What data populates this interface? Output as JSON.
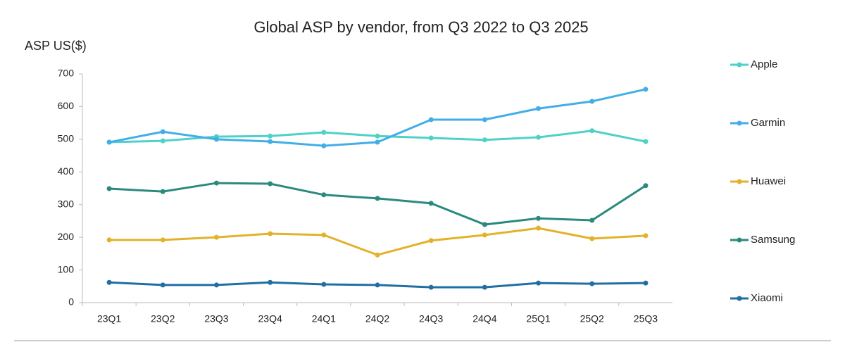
{
  "chart_data": {
    "type": "line",
    "title": "Global ASP by vendor, from Q3 2022 to Q3 2025",
    "y_label": "ASP US($)",
    "categories": [
      "23Q1",
      "23Q2",
      "23Q3",
      "23Q4",
      "24Q1",
      "24Q2",
      "24Q3",
      "24Q4",
      "25Q1",
      "25Q2",
      "25Q3"
    ],
    "series": [
      {
        "name": "Apple",
        "color": "#4fd1c8",
        "values": [
          491,
          495,
          508,
          510,
          521,
          510,
          504,
          498,
          506,
          526,
          493
        ]
      },
      {
        "name": "Garmin",
        "color": "#42aee8",
        "values": [
          491,
          523,
          500,
          493,
          480,
          491,
          560,
          560,
          594,
          616,
          653
        ]
      },
      {
        "name": "Huawei",
        "color": "#e3b22a",
        "values": [
          192,
          192,
          200,
          211,
          207,
          146,
          190,
          207,
          228,
          196,
          205
        ]
      },
      {
        "name": "Samsung",
        "color": "#2a8a7e",
        "values": [
          349,
          340,
          366,
          364,
          330,
          319,
          304,
          239,
          258,
          252,
          358
        ]
      },
      {
        "name": "Xiaomi",
        "color": "#1f6fa3",
        "values": [
          62,
          54,
          54,
          62,
          56,
          54,
          47,
          47,
          60,
          58,
          60
        ]
      }
    ],
    "ylim": [
      0,
      700
    ],
    "yticks": [
      0,
      100,
      200,
      300,
      400,
      500,
      600,
      700
    ],
    "grid": false,
    "legend": "right"
  }
}
